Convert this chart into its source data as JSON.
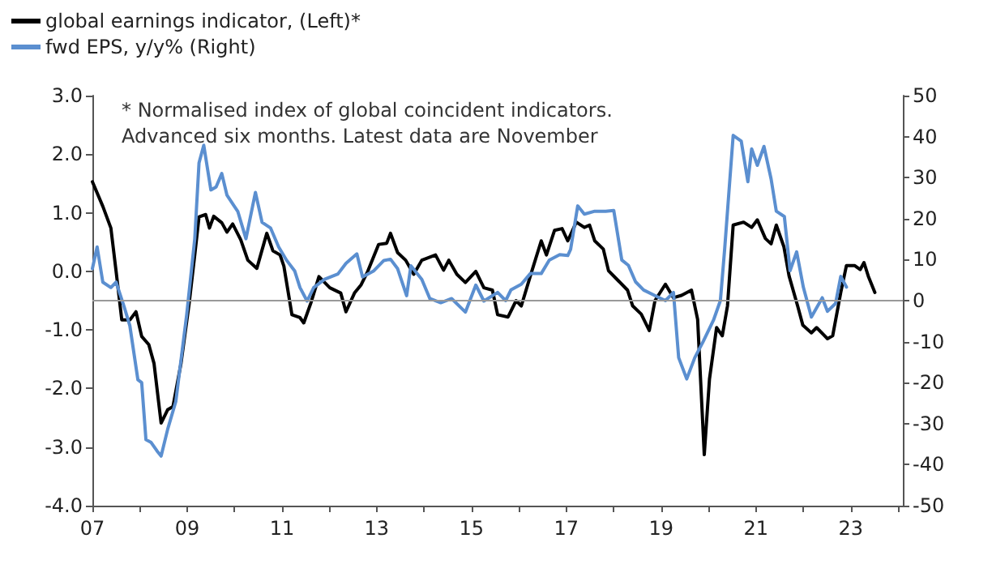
{
  "chart_data": {
    "type": "line",
    "annotations": [
      "* Normalised index of global coincident indicators.",
      "Advanced six months. Latest data are November"
    ],
    "xlim": [
      2007,
      2024.1
    ],
    "xticks": [
      {
        "value": 2007,
        "label": "07"
      },
      {
        "value": 2008,
        "label": null
      },
      {
        "value": 2009,
        "label": "09"
      },
      {
        "value": 2010,
        "label": null
      },
      {
        "value": 2011,
        "label": "11"
      },
      {
        "value": 2012,
        "label": null
      },
      {
        "value": 2013,
        "label": "13"
      },
      {
        "value": 2014,
        "label": null
      },
      {
        "value": 2015,
        "label": "15"
      },
      {
        "value": 2016,
        "label": null
      },
      {
        "value": 2017,
        "label": "17"
      },
      {
        "value": 2018,
        "label": null
      },
      {
        "value": 2019,
        "label": "19"
      },
      {
        "value": 2020,
        "label": null
      },
      {
        "value": 2021,
        "label": "21"
      },
      {
        "value": 2022,
        "label": null
      },
      {
        "value": 2023,
        "label": "23"
      },
      {
        "value": 2024,
        "label": null
      }
    ],
    "ylim": [
      -4,
      3
    ],
    "yticks": [
      {
        "value": -4,
        "label": "-4.0"
      },
      {
        "value": -3,
        "label": "-3.0"
      },
      {
        "value": -2,
        "label": "-2.0"
      },
      {
        "value": -1,
        "label": "-1.0"
      },
      {
        "value": 0,
        "label": "0.0"
      },
      {
        "value": 1,
        "label": "1.0"
      },
      {
        "value": 2,
        "label": "2.0"
      },
      {
        "value": 3,
        "label": "3.0"
      }
    ],
    "y2lim": [
      -50,
      50
    ],
    "y2ticks": [
      -50,
      -40,
      -30,
      -20,
      -10,
      0,
      10,
      20,
      30,
      40,
      50
    ],
    "legend": "top left",
    "grid": false,
    "marker": "none",
    "line_style": "solid",
    "ref_lines": [
      {
        "axis": "y2",
        "value": 0,
        "color": "#999999"
      }
    ],
    "series": [
      {
        "name": "global earnings indicator, (Left)*",
        "color": "#000000",
        "x": [
          2007.0,
          2007.22,
          2007.39,
          2007.5,
          2007.62,
          2007.79,
          2007.92,
          2008.04,
          2008.19,
          2008.3,
          2008.45,
          2008.59,
          2008.7,
          2008.87,
          2009.04,
          2009.16,
          2009.25,
          2009.39,
          2009.47,
          2009.56,
          2009.73,
          2009.84,
          2009.96,
          2010.13,
          2010.28,
          2010.47,
          2010.55,
          2010.68,
          2010.81,
          2010.96,
          2011.04,
          2011.21,
          2011.38,
          2011.46,
          2011.61,
          2011.78,
          2012.01,
          2012.24,
          2012.35,
          2012.53,
          2012.67,
          2012.81,
          2013.04,
          2013.21,
          2013.29,
          2013.44,
          2013.61,
          2013.78,
          2013.95,
          2014.24,
          2014.41,
          2014.52,
          2014.69,
          2014.87,
          2015.09,
          2015.26,
          2015.44,
          2015.55,
          2015.77,
          2015.94,
          2016.05,
          2016.24,
          2016.47,
          2016.58,
          2016.75,
          2016.91,
          2017.03,
          2017.21,
          2017.38,
          2017.49,
          2017.6,
          2017.78,
          2017.89,
          2018.06,
          2018.29,
          2018.4,
          2018.58,
          2018.75,
          2018.87,
          2019.09,
          2019.26,
          2019.43,
          2019.64,
          2019.77,
          2019.91,
          2020.02,
          2020.17,
          2020.29,
          2020.4,
          2020.52,
          2020.74,
          2020.91,
          2021.03,
          2021.2,
          2021.32,
          2021.43,
          2021.59,
          2021.7,
          2021.88,
          2021.99,
          2022.17,
          2022.28,
          2022.51,
          2022.62,
          2022.79,
          2022.91,
          2023.08,
          2023.2,
          2023.28,
          2023.37,
          2023.51
        ],
        "values": [
          1.53,
          1.11,
          0.74,
          0.0,
          -0.83,
          -0.83,
          -0.69,
          -1.11,
          -1.25,
          -1.57,
          -2.59,
          -2.36,
          -2.31,
          -1.57,
          -0.56,
          0.28,
          0.93,
          0.97,
          0.74,
          0.94,
          0.83,
          0.67,
          0.81,
          0.54,
          0.19,
          0.05,
          0.28,
          0.65,
          0.35,
          0.28,
          0.09,
          -0.74,
          -0.79,
          -0.88,
          -0.54,
          -0.09,
          -0.28,
          -0.37,
          -0.69,
          -0.37,
          -0.23,
          0.0,
          0.46,
          0.48,
          0.65,
          0.32,
          0.19,
          -0.05,
          0.19,
          0.28,
          0.02,
          0.19,
          -0.05,
          -0.19,
          0.0,
          -0.28,
          -0.32,
          -0.74,
          -0.78,
          -0.5,
          -0.59,
          -0.08,
          0.52,
          0.28,
          0.7,
          0.73,
          0.52,
          0.84,
          0.75,
          0.79,
          0.52,
          0.38,
          0.01,
          -0.13,
          -0.32,
          -0.59,
          -0.73,
          -1.01,
          -0.5,
          -0.22,
          -0.45,
          -0.41,
          -0.32,
          -0.82,
          -3.13,
          -1.84,
          -0.96,
          -1.1,
          -0.59,
          0.79,
          0.84,
          0.75,
          0.88,
          0.56,
          0.47,
          0.79,
          0.42,
          -0.08,
          -0.59,
          -0.92,
          -1.05,
          -0.96,
          -1.15,
          -1.1,
          -0.36,
          0.1,
          0.1,
          0.03,
          0.15,
          -0.08,
          -0.36
        ]
      },
      {
        "name": "fwd EPS, y/y% (Right)",
        "color": "#5b8fd0",
        "axis": "y2",
        "x": [
          2007.0,
          2007.1,
          2007.22,
          2007.39,
          2007.5,
          2007.67,
          2007.79,
          2007.96,
          2008.04,
          2008.13,
          2008.24,
          2008.36,
          2008.45,
          2008.59,
          2008.76,
          2008.99,
          2009.16,
          2009.25,
          2009.35,
          2009.5,
          2009.61,
          2009.73,
          2009.84,
          2010.07,
          2010.24,
          2010.44,
          2010.58,
          2010.76,
          2010.93,
          2011.1,
          2011.27,
          2011.38,
          2011.53,
          2011.67,
          2011.9,
          2012.18,
          2012.35,
          2012.58,
          2012.7,
          2012.93,
          2013.15,
          2013.29,
          2013.44,
          2013.63,
          2013.72,
          2013.95,
          2014.12,
          2014.35,
          2014.58,
          2014.87,
          2015.09,
          2015.26,
          2015.55,
          2015.72,
          2015.83,
          2016.05,
          2016.24,
          2016.47,
          2016.64,
          2016.86,
          2017.03,
          2017.09,
          2017.24,
          2017.38,
          2017.6,
          2017.83,
          2018.0,
          2018.17,
          2018.31,
          2018.46,
          2018.63,
          2018.86,
          2019.09,
          2019.26,
          2019.37,
          2019.54,
          2019.71,
          2019.89,
          2020.11,
          2020.25,
          2020.34,
          2020.52,
          2020.69,
          2020.83,
          2020.91,
          2021.03,
          2021.17,
          2021.32,
          2021.43,
          2021.6,
          2021.72,
          2021.86,
          2022.0,
          2022.17,
          2022.4,
          2022.51,
          2022.68,
          2022.79,
          2022.91
        ],
        "values": [
          7.8,
          13.1,
          4.5,
          3.2,
          4.5,
          -1.5,
          -6.1,
          -19.3,
          -20.0,
          -33.9,
          -34.6,
          -36.6,
          -37.9,
          -31.3,
          -24.6,
          -3.4,
          15.1,
          33.6,
          37.9,
          27.0,
          27.7,
          31.0,
          25.7,
          21.7,
          15.1,
          26.4,
          19.1,
          17.7,
          13.1,
          9.8,
          7.2,
          3.2,
          -0.1,
          3.2,
          5.2,
          6.5,
          9.1,
          11.4,
          5.8,
          7.2,
          9.8,
          10.1,
          7.8,
          1.2,
          8.5,
          5.2,
          0.5,
          -0.5,
          0.5,
          -2.8,
          3.8,
          -0.1,
          2.0,
          0.0,
          2.6,
          4.0,
          6.6,
          6.6,
          9.9,
          11.2,
          11.0,
          12.5,
          23.1,
          21.1,
          21.8,
          21.8,
          22.0,
          9.9,
          8.6,
          4.6,
          2.6,
          1.3,
          0.0,
          2.0,
          -13.9,
          -19.1,
          -13.9,
          -9.9,
          -4.6,
          0.0,
          12.5,
          40.3,
          38.9,
          29.0,
          37.0,
          33.0,
          37.6,
          29.7,
          21.8,
          20.5,
          7.3,
          11.9,
          3.3,
          -4.0,
          0.7,
          -2.6,
          -0.7,
          5.9,
          3.3
        ]
      }
    ]
  }
}
